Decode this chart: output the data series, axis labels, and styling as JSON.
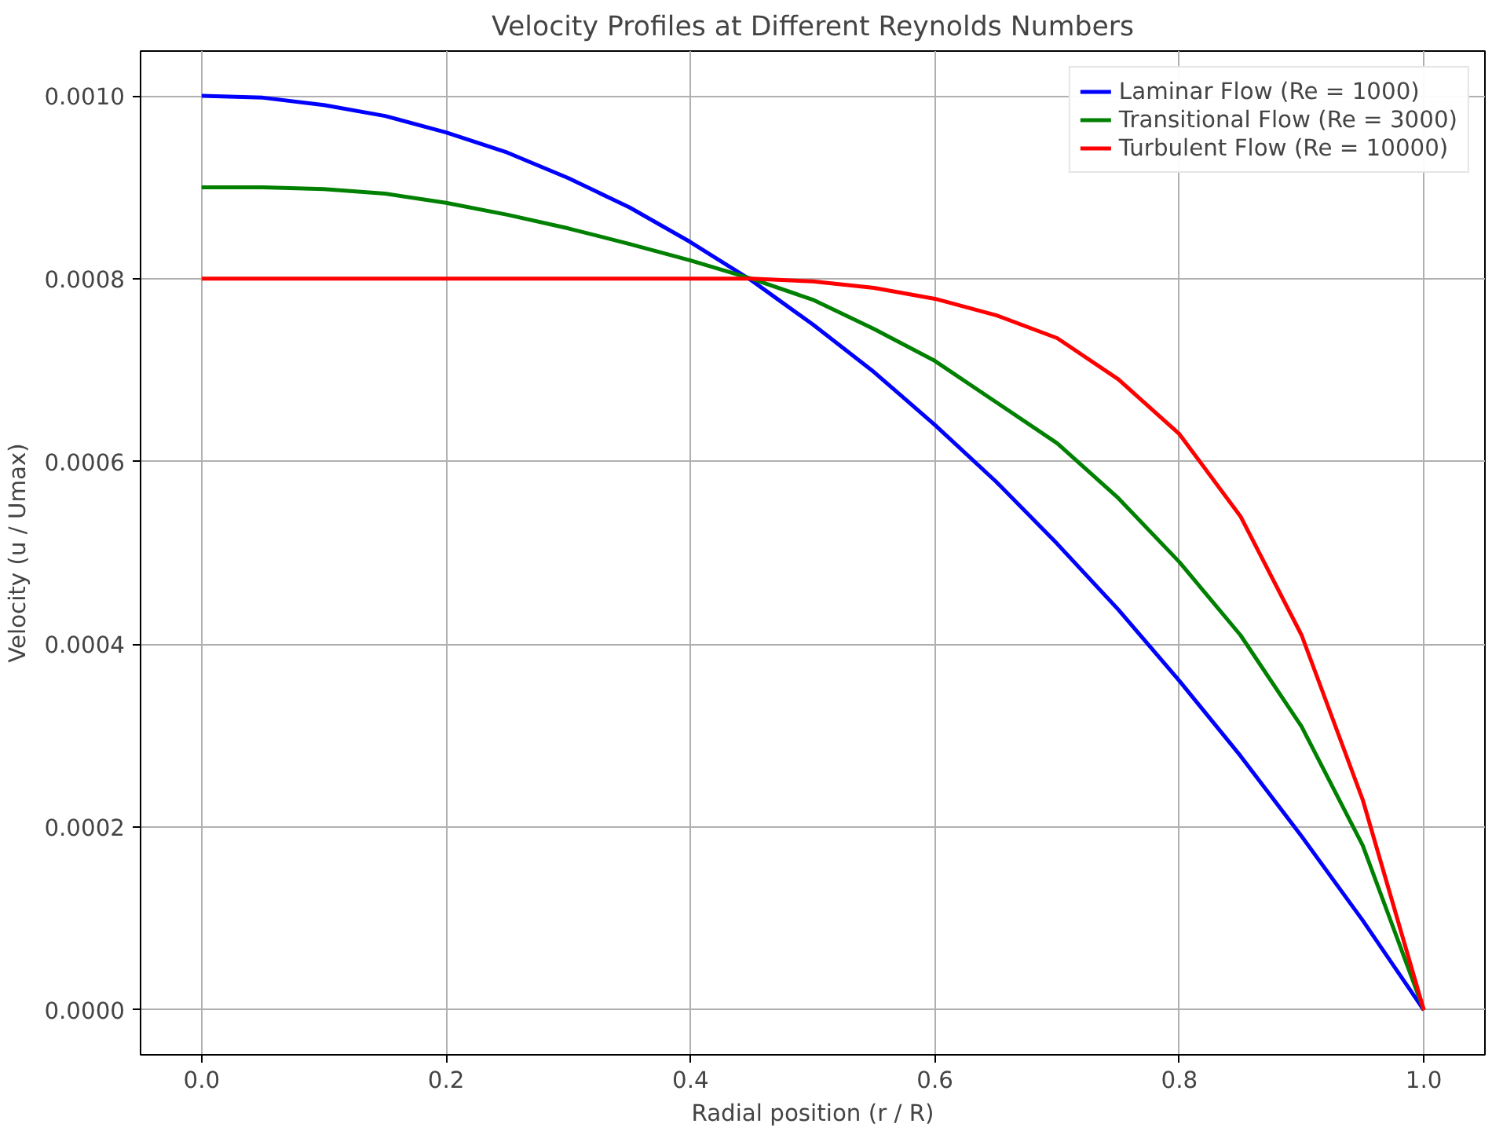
{
  "chart_data": {
    "type": "line",
    "title": "Velocity Profiles at Different Reynolds Numbers",
    "xlabel": "Radial position (r / R)",
    "ylabel": "Velocity (u / Umax)",
    "x": [
      0,
      0.05,
      0.1,
      0.15,
      0.2,
      0.25,
      0.3,
      0.35,
      0.4,
      0.45,
      0.5,
      0.55,
      0.6,
      0.65,
      0.7,
      0.75,
      0.8,
      0.85,
      0.9,
      0.95,
      1.0
    ],
    "series": [
      {
        "name": "Laminar Flow (Re = 1000)",
        "color": "#0000ff",
        "values": [
          0.001,
          0.000998,
          0.00099,
          0.000978,
          0.00096,
          0.000938,
          0.00091,
          0.000878,
          0.00084,
          0.000798,
          0.00075,
          0.000698,
          0.00064,
          0.000578,
          0.00051,
          0.000438,
          0.00036,
          0.000278,
          0.00019,
          9.8e-05,
          0
        ]
      },
      {
        "name": "Transitional Flow (Re = 3000)",
        "color": "#008000",
        "values": [
          0.0009,
          0.0009,
          0.000898,
          0.000893,
          0.000883,
          0.00087,
          0.000855,
          0.000838,
          0.00082,
          0.0008,
          0.000777,
          0.000745,
          0.00071,
          0.000665,
          0.00062,
          0.00056,
          0.00049,
          0.00041,
          0.00031,
          0.00018,
          0
        ]
      },
      {
        "name": "Turbulent Flow (Re = 10000)",
        "color": "#ff0000",
        "values": [
          0.0008,
          0.0008,
          0.0008,
          0.0008,
          0.0008,
          0.0008,
          0.0008,
          0.0008,
          0.0008,
          0.0008,
          0.000797,
          0.00079,
          0.000778,
          0.00076,
          0.000735,
          0.00069,
          0.00063,
          0.00054,
          0.00041,
          0.00023,
          0
        ]
      }
    ],
    "xlim": [
      -0.05,
      1.05
    ],
    "xticks": [
      {
        "value": 0,
        "label": "0.0"
      },
      {
        "value": 0.2,
        "label": "0.2"
      },
      {
        "value": 0.4,
        "label": "0.4"
      },
      {
        "value": 0.6,
        "label": "0.6"
      },
      {
        "value": 0.8,
        "label": "0.8"
      },
      {
        "value": 1.0,
        "label": "1.0"
      }
    ],
    "ylim": [
      -4.9e-05,
      0.001049
    ],
    "yticks": [
      {
        "value": 0,
        "label": "0.0000"
      },
      {
        "value": 0.0002,
        "label": "0.0002"
      },
      {
        "value": 0.0004,
        "label": "0.0004"
      },
      {
        "value": 0.0006,
        "label": "0.0006"
      },
      {
        "value": 0.0008,
        "label": "0.0008"
      },
      {
        "value": 0.001,
        "label": "0.0010"
      }
    ],
    "grid": true,
    "legend": "top right",
    "line_style": "solid"
  }
}
